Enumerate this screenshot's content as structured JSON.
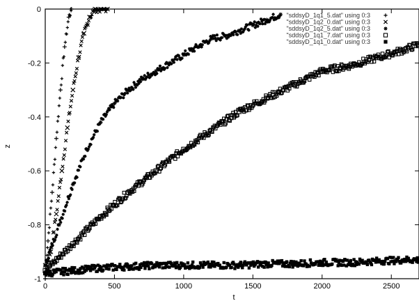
{
  "chart_data": {
    "type": "scatter",
    "title": "",
    "xlabel": "t",
    "ylabel": "z",
    "xlim": [
      0,
      2700
    ],
    "ylim": [
      -1,
      0
    ],
    "x_ticks": [
      0,
      500,
      1000,
      1500,
      2000,
      2500
    ],
    "y_ticks": [
      0,
      -0.2,
      -0.4,
      -0.6,
      -0.8,
      -1
    ],
    "x_tick_labels": [
      "0",
      "500",
      "1000",
      "1500",
      "2000",
      "2500"
    ],
    "y_tick_labels": [
      "0",
      "-0.2",
      "-0.4",
      "-0.6",
      "-0.8",
      "-1"
    ],
    "grid": false,
    "legend_position": "top-right",
    "series": [
      {
        "name": "\"sddsyD_1q1_5.dat\" using 0:3",
        "marker": "plus",
        "x": [
          0,
          20,
          50,
          80,
          110,
          140,
          170,
          190
        ],
        "y": [
          -1,
          -0.86,
          -0.68,
          -0.48,
          -0.3,
          -0.14,
          -0.03,
          0
        ]
      },
      {
        "name": "\"sddsyD_1q2_0.dat\" using 0:3",
        "marker": "cross",
        "x": [
          0,
          40,
          80,
          120,
          160,
          200,
          240,
          280,
          320,
          360,
          400,
          450
        ],
        "y": [
          -0.95,
          -0.9,
          -0.76,
          -0.6,
          -0.44,
          -0.3,
          -0.18,
          -0.09,
          -0.03,
          0,
          0,
          0
        ]
      },
      {
        "name": "\"sddsyD_1q2_5.dat\" using 0:3",
        "marker": "asterisk",
        "x": [
          0,
          100,
          200,
          300,
          400,
          500,
          600,
          700,
          800,
          900,
          1000,
          1100,
          1200,
          1300,
          1400,
          1500,
          1600,
          1700
        ],
        "y": [
          -0.95,
          -0.8,
          -0.65,
          -0.52,
          -0.42,
          -0.35,
          -0.3,
          -0.26,
          -0.23,
          -0.2,
          -0.17,
          -0.14,
          -0.11,
          -0.1,
          -0.08,
          -0.06,
          -0.04,
          -0.02
        ]
      },
      {
        "name": "\"sddsyD_1q1_7.dat\" using 0:3",
        "marker": "box",
        "x": [
          0,
          200,
          400,
          600,
          800,
          1000,
          1200,
          1400,
          1600,
          1800,
          2000,
          2200,
          2400,
          2600,
          2700
        ],
        "y": [
          -0.97,
          -0.87,
          -0.77,
          -0.68,
          -0.6,
          -0.52,
          -0.45,
          -0.38,
          -0.33,
          -0.28,
          -0.23,
          -0.21,
          -0.18,
          -0.15,
          -0.13
        ]
      },
      {
        "name": "\"sddsyD_1q1_0.dat\" using 0:3",
        "marker": "filledbox",
        "x": [
          0,
          200,
          400,
          600,
          800,
          1000,
          1200,
          1400,
          1600,
          1800,
          2000,
          2200,
          2400,
          2600,
          2700
        ],
        "y": [
          -0.98,
          -0.97,
          -0.96,
          -0.955,
          -0.95,
          -0.95,
          -0.95,
          -0.95,
          -0.945,
          -0.945,
          -0.94,
          -0.94,
          -0.935,
          -0.93,
          -0.93
        ]
      }
    ]
  }
}
